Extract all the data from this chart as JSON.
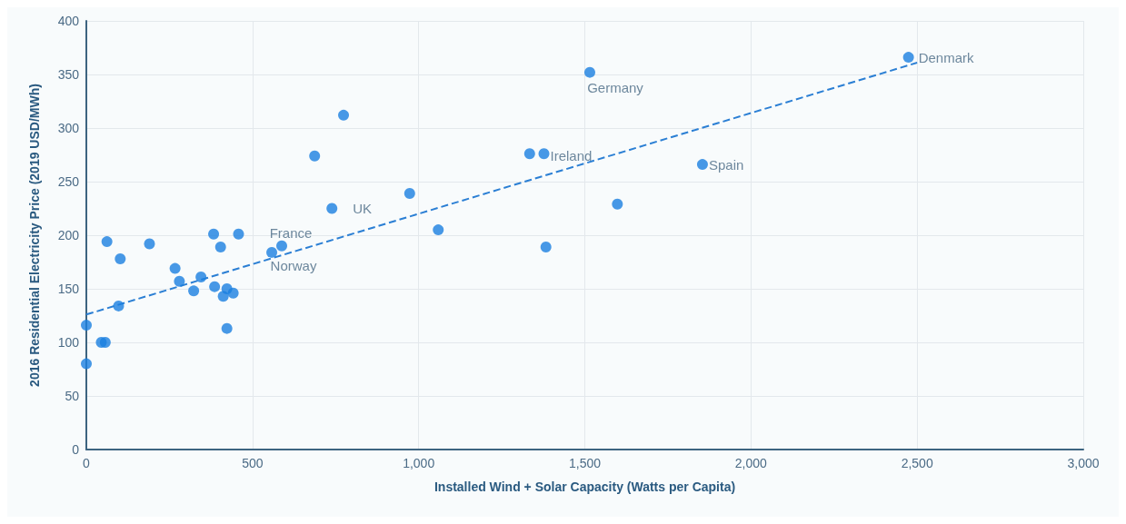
{
  "chart_data": {
    "type": "scatter",
    "xlabel": "Installed Wind + Solar Capacity (Watts per Capita)",
    "ylabel": "2016 Residential Electricity Price (2019 USD/MWh)",
    "xlim": [
      0,
      3000
    ],
    "xticks": [
      0,
      {
        "value": 500,
        "label": "500"
      },
      {
        "value": 1000,
        "label": "1,000"
      },
      {
        "value": 1500,
        "label": "1,500"
      },
      {
        "value": 2000,
        "label": "2,000"
      },
      {
        "value": 2500,
        "label": "2,500"
      },
      {
        "value": 3000,
        "label": "3,000"
      }
    ],
    "ylim": [
      0,
      400
    ],
    "yticks": [
      0,
      50,
      100,
      150,
      200,
      250,
      300,
      350,
      400
    ],
    "grid": true,
    "marker": "circle",
    "series": [
      {
        "color": "#1a7fe0",
        "x": [
          0,
          0,
          45,
          57,
          62,
          102,
          190,
          97,
          267,
          280,
          323,
          345,
          383,
          386,
          404,
          412,
          423,
          442,
          423,
          458,
          558,
          588,
          687,
          739,
          774,
          973,
          1059,
          1334,
          1377,
          1383,
          1515,
          1598,
          1854,
          2474
        ],
        "values": [
          116,
          80,
          100,
          100,
          194,
          178,
          192,
          134,
          169,
          157,
          148,
          161,
          201,
          152,
          189,
          143,
          150,
          146,
          113,
          201,
          184,
          190,
          274,
          225,
          312,
          239,
          205,
          276,
          276,
          189,
          352,
          229,
          266,
          366
        ]
      },
      {
        "type": "line",
        "color": "#2b7fd4",
        "line_style": "dashed",
        "marker": "none",
        "x": [
          0,
          2500
        ],
        "values": [
          126,
          361
        ]
      }
    ],
    "annotations": [
      {
        "text": "Denmark",
        "x": 2474,
        "y": 366
      },
      {
        "text": "Germany",
        "x": 1515,
        "y": 352
      },
      {
        "text": "Ireland",
        "x": 1377,
        "y": 276
      },
      {
        "text": "Spain",
        "x": 1854,
        "y": 266
      },
      {
        "text": "UK",
        "x": 739,
        "y": 225
      },
      {
        "text": "France",
        "x": 588,
        "y": 190
      },
      {
        "text": "Norway",
        "x": 558,
        "y": 184
      }
    ]
  }
}
